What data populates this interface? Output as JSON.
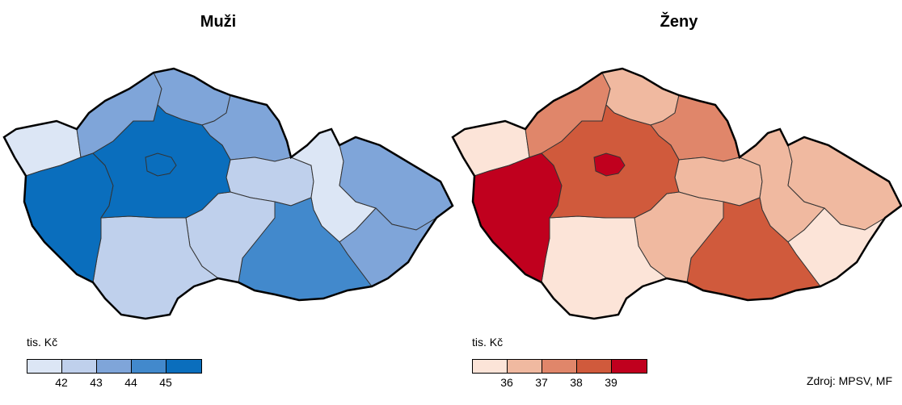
{
  "titles": {
    "men": "Muži",
    "women": "Ženy"
  },
  "legend": {
    "unit": "tis. Kč",
    "men": {
      "colors": [
        "#dce6f5",
        "#bfd0ec",
        "#7fa5d9",
        "#4289cc",
        "#0a6ebd"
      ],
      "ticks": [
        "42",
        "43",
        "44",
        "45"
      ]
    },
    "women": {
      "colors": [
        "#fce4d8",
        "#f0b9a0",
        "#e0866a",
        "#d05a3c",
        "#c0001e"
      ],
      "ticks": [
        "36",
        "37",
        "38",
        "39"
      ]
    }
  },
  "regions": {
    "men": {
      "karlovarsky": 0,
      "ustecky": 2,
      "liberecky": 2,
      "kralovehradecky": 2,
      "pardubicky": 1,
      "olomoucky": 0,
      "moravskoslezsky": 2,
      "zlinsky": 2,
      "jihomoravsky": 3,
      "vysocina": 1,
      "jihocesky": 1,
      "plzensky": 4,
      "stredocesky": 4,
      "praha": 4
    },
    "women": {
      "karlovarsky": 0,
      "ustecky": 2,
      "liberecky": 1,
      "kralovehradecky": 2,
      "pardubicky": 1,
      "olomoucky": 1,
      "moravskoslezsky": 1,
      "zlinsky": 0,
      "jihomoravsky": 3,
      "vysocina": 1,
      "jihocesky": 0,
      "plzensky": 4,
      "stredocesky": 3,
      "praha": 4
    }
  },
  "source": "Zdroj: MPSV, MF"
}
